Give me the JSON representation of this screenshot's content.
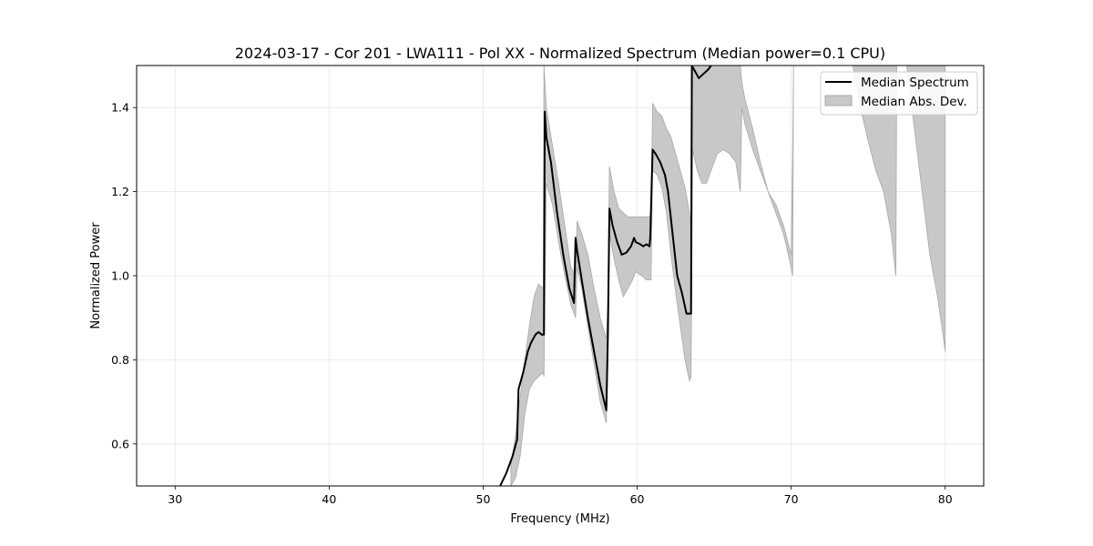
{
  "chart_data": {
    "type": "line",
    "title": "2024-03-17 - Cor 201 - LWA111 - Pol XX - Normalized Spectrum (Median power=0.1 CPU)",
    "xlabel": "Frequency (MHz)",
    "ylabel": "Normalized Power",
    "xlim": [
      27.5,
      82.5
    ],
    "ylim": [
      0.5,
      1.5
    ],
    "xticks": [
      30,
      40,
      50,
      60,
      70,
      80
    ],
    "yticks": [
      0.6,
      0.8,
      1.0,
      1.2,
      1.4
    ],
    "xtick_labels": [
      "30",
      "40",
      "50",
      "60",
      "70",
      "80"
    ],
    "ytick_labels": [
      "0.6",
      "0.8",
      "1.0",
      "1.2",
      "1.4"
    ],
    "grid": true,
    "legend_position": "top-right",
    "series": [
      {
        "name": "Median Spectrum",
        "kind": "line",
        "color": "#000000",
        "x": [
          51.1,
          51.5,
          51.9,
          52.2,
          52.3,
          52.6,
          52.9,
          53.1,
          53.4,
          53.6,
          53.8,
          53.95,
          54.0,
          54.1,
          54.4,
          54.8,
          55.2,
          55.6,
          55.9,
          56.0,
          56.1,
          56.4,
          56.8,
          57.2,
          57.6,
          58.0,
          58.1,
          58.2,
          58.4,
          58.7,
          59.0,
          59.3,
          59.6,
          59.8,
          59.9,
          60.2,
          60.4,
          60.6,
          60.8,
          60.85,
          61.0,
          61.2,
          61.5,
          61.8,
          62.0,
          62.3,
          62.6,
          62.9,
          63.2,
          63.5,
          63.55,
          63.7,
          64.0,
          64.3,
          64.6,
          64.8
        ],
        "y": [
          0.5,
          0.53,
          0.57,
          0.61,
          0.73,
          0.77,
          0.82,
          0.84,
          0.86,
          0.866,
          0.86,
          0.86,
          1.39,
          1.33,
          1.27,
          1.15,
          1.05,
          0.97,
          0.935,
          1.09,
          1.06,
          0.99,
          0.9,
          0.82,
          0.74,
          0.68,
          0.86,
          1.16,
          1.12,
          1.08,
          1.05,
          1.055,
          1.07,
          1.09,
          1.08,
          1.075,
          1.07,
          1.075,
          1.07,
          1.09,
          1.3,
          1.29,
          1.27,
          1.24,
          1.2,
          1.1,
          1.0,
          0.96,
          0.91,
          0.91,
          1.5,
          1.49,
          1.47,
          1.48,
          1.49,
          1.5
        ]
      },
      {
        "name": "Median Abs. Dev.",
        "kind": "band",
        "color": "#c8c8c8",
        "edge_color": "#a9a9a9",
        "x": [
          51.8,
          52.1,
          52.4,
          52.7,
          53.0,
          53.3,
          53.6,
          53.9,
          53.95,
          54.1,
          54.5,
          54.9,
          55.3,
          55.7,
          56.0,
          56.1,
          56.4,
          56.8,
          57.2,
          57.6,
          58.0,
          58.1,
          58.2,
          58.5,
          58.8,
          59.1,
          59.4,
          59.7,
          59.9,
          60.3,
          60.6,
          60.8,
          60.9,
          61.0,
          61.3,
          61.6,
          61.9,
          62.2,
          62.5,
          62.8,
          63.1,
          63.4,
          63.5,
          63.6,
          63.9,
          64.2,
          64.5,
          64.8,
          65.2,
          65.6,
          66.0,
          66.4,
          66.7,
          66.8,
          67.0,
          67.5,
          68.0,
          68.5,
          69.0,
          69.5,
          70.0,
          70.1,
          70.15,
          74.0,
          74.5,
          75.0,
          75.5,
          76.0,
          76.5,
          76.8,
          76.85,
          77.5,
          78.0,
          78.5,
          79.0,
          79.5,
          79.9,
          80.0
        ],
        "upper": [
          0.55,
          0.62,
          0.71,
          0.8,
          0.88,
          0.95,
          0.98,
          0.97,
          1.5,
          1.4,
          1.31,
          1.22,
          1.12,
          1.02,
          1.0,
          1.13,
          1.1,
          1.05,
          0.97,
          0.9,
          0.85,
          0.94,
          1.26,
          1.2,
          1.16,
          1.15,
          1.14,
          1.14,
          1.14,
          1.14,
          1.14,
          1.14,
          1.15,
          1.41,
          1.39,
          1.38,
          1.35,
          1.33,
          1.29,
          1.25,
          1.21,
          1.15,
          1.1,
          1.5,
          1.5,
          1.5,
          1.5,
          1.5,
          1.5,
          1.5,
          1.5,
          1.5,
          1.5,
          1.46,
          1.42,
          1.35,
          1.27,
          1.2,
          1.17,
          1.12,
          1.05,
          1.3,
          1.5,
          1.5,
          1.5,
          1.5,
          1.5,
          1.5,
          1.5,
          1.5,
          1.5,
          1.5,
          1.5,
          1.5,
          1.5,
          1.5,
          1.5,
          1.5
        ],
        "lower": [
          0.5,
          0.52,
          0.57,
          0.67,
          0.73,
          0.75,
          0.76,
          0.77,
          0.76,
          1.22,
          1.17,
          1.08,
          1.0,
          0.93,
          0.9,
          1.02,
          0.97,
          0.88,
          0.79,
          0.7,
          0.65,
          0.8,
          1.1,
          1.04,
          0.99,
          0.95,
          0.97,
          0.99,
          1.01,
          1.0,
          0.99,
          0.99,
          0.99,
          1.25,
          1.24,
          1.21,
          1.15,
          1.05,
          0.96,
          0.88,
          0.8,
          0.75,
          0.76,
          1.3,
          1.25,
          1.22,
          1.22,
          1.25,
          1.29,
          1.3,
          1.29,
          1.27,
          1.2,
          1.4,
          1.36,
          1.3,
          1.25,
          1.2,
          1.15,
          1.1,
          1.02,
          1.0,
          1.5,
          1.5,
          1.4,
          1.32,
          1.25,
          1.2,
          1.1,
          1.0,
          1.5,
          1.5,
          1.35,
          1.2,
          1.05,
          0.95,
          0.85,
          0.82
        ]
      }
    ]
  }
}
